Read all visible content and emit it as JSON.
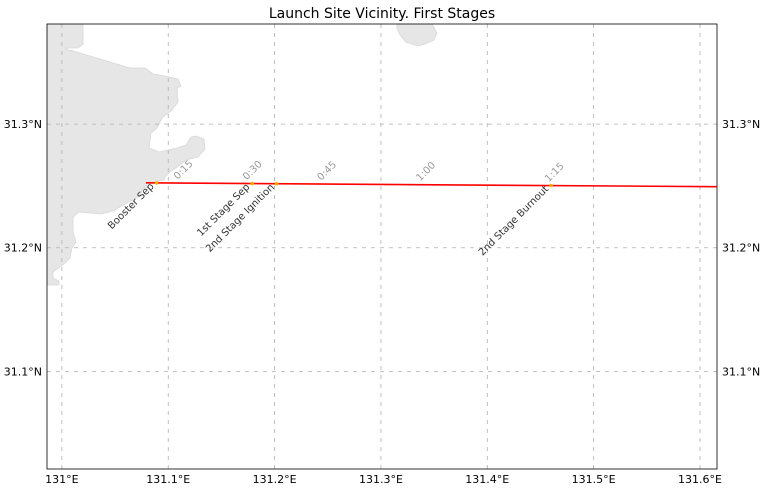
{
  "title": "Launch Site Vicinity. First Stages",
  "colors": {
    "land": "#e6e6e6",
    "land_edge": "#d8d8d8",
    "trajectory": "#ff0000",
    "event_marker": "#ffaa00",
    "gridline": "#b0b0b0",
    "frame": "#000000"
  },
  "map": {
    "lon_range": [
      130.986,
      131.616
    ],
    "lat_range": [
      31.021,
      31.381
    ],
    "gridlines": "dashed",
    "longitude_ticks": [
      {
        "value": 131.0,
        "label": "131°E"
      },
      {
        "value": 131.1,
        "label": "131.1°E"
      },
      {
        "value": 131.2,
        "label": "131.2°E"
      },
      {
        "value": 131.3,
        "label": "131.3°E"
      },
      {
        "value": 131.4,
        "label": "131.4°E"
      },
      {
        "value": 131.5,
        "label": "131.5°E"
      },
      {
        "value": 131.6,
        "label": "131.6°E"
      }
    ],
    "latitude_ticks": [
      {
        "value": 31.1,
        "label": "31.1°N"
      },
      {
        "value": 31.2,
        "label": "31.2°N"
      },
      {
        "value": 31.3,
        "label": "31.3°N"
      }
    ]
  },
  "trajectory": {
    "points": [
      [
        131.079,
        31.2525
      ],
      [
        131.616,
        31.2494
      ]
    ]
  },
  "time_marks": [
    {
      "label": "0:15",
      "lon": 131.106
    },
    {
      "label": "0:30",
      "lon": 131.171
    },
    {
      "label": "0:45",
      "lon": 131.241
    },
    {
      "label": "1:00",
      "lon": 131.334
    },
    {
      "label": "1:15",
      "lon": 131.455
    }
  ],
  "events": [
    {
      "label": "Booster Sep",
      "lon": 131.089
    },
    {
      "label": "1st Stage Sep",
      "lon": 131.179
    },
    {
      "label": "2nd Stage Ignition",
      "lon": 131.202
    },
    {
      "label": "2nd Stage Burnout",
      "lon": 131.46
    }
  ]
}
